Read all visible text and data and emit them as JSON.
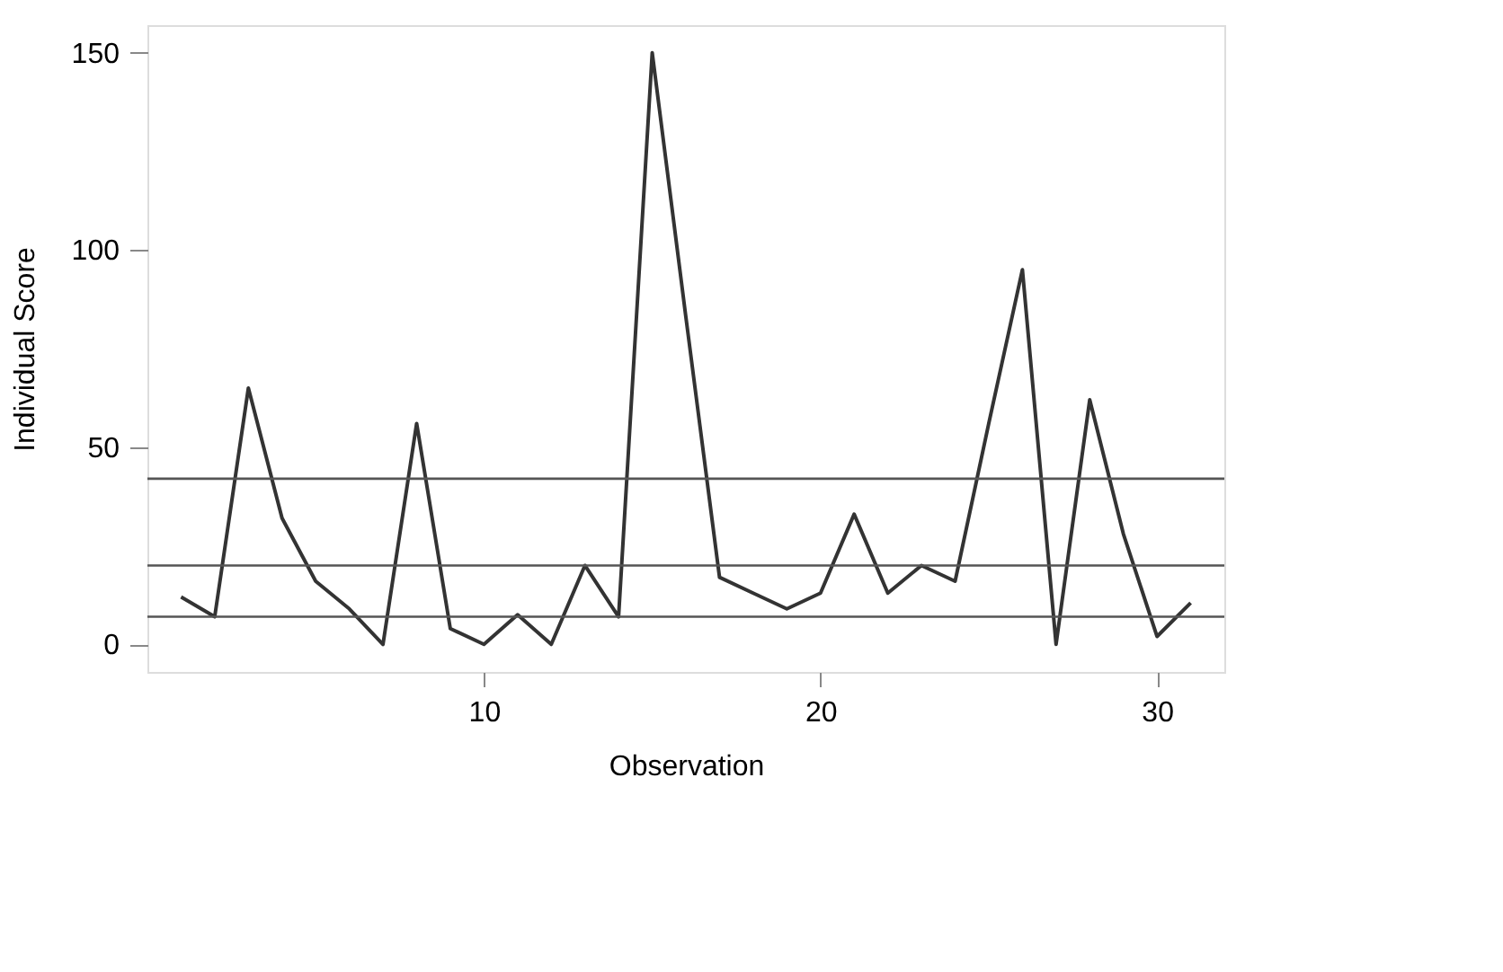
{
  "chart_data": {
    "type": "line",
    "xlabel": "Observation",
    "ylabel": "Individual Score",
    "x": [
      1,
      2,
      3,
      4,
      5,
      6,
      7,
      8,
      9,
      10,
      11,
      12,
      13,
      14,
      15,
      16,
      17,
      18,
      19,
      20,
      21,
      22,
      23,
      24,
      25,
      26,
      27,
      28,
      29,
      30,
      31
    ],
    "series": [
      {
        "color": "#333333",
        "values": [
          12,
          7,
          65,
          32,
          16,
          9,
          0,
          56,
          4,
          0,
          7.5,
          0,
          20,
          7,
          150,
          83,
          17,
          13,
          9,
          13,
          33,
          13,
          20,
          16,
          56,
          95,
          0,
          62,
          28,
          2,
          10.5
        ]
      }
    ],
    "ref_lines": [
      {
        "axis": "y",
        "value": 42,
        "color": "#555555"
      },
      {
        "axis": "y",
        "value": 20,
        "color": "#555555"
      },
      {
        "axis": "y",
        "value": 7,
        "color": "#555555"
      }
    ],
    "xlim": [
      0,
      32
    ],
    "ylim": [
      -7,
      157
    ],
    "xticks": [
      10,
      20,
      30
    ],
    "yticks": [
      0,
      50,
      100,
      150
    ],
    "grid": false,
    "marker": "none",
    "line_style": "solid"
  }
}
